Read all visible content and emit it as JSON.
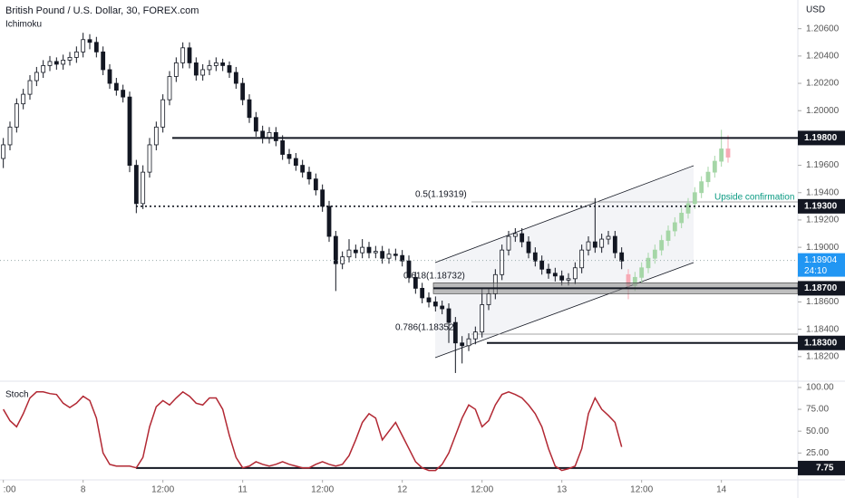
{
  "chart_data": [
    {
      "type": "candlestick",
      "title": "British Pound / U.S. Dollar, 30, FOREX.com",
      "indicator": "Ichimoku",
      "axis_label": "USD",
      "x": [
        0,
        1,
        2,
        3,
        4,
        5,
        6,
        7,
        8,
        9,
        10,
        11,
        12,
        13,
        14,
        15,
        16,
        17,
        18,
        19,
        20,
        21,
        22,
        23,
        24,
        25,
        26,
        27,
        28,
        29,
        30,
        31,
        32,
        33,
        34,
        35,
        36,
        37,
        38,
        39,
        40,
        41,
        42,
        43,
        44,
        45,
        46,
        47,
        48,
        49,
        50,
        51,
        52,
        53,
        54,
        55,
        56,
        57,
        58,
        59,
        60,
        61,
        62,
        63,
        64,
        65,
        66,
        67,
        68,
        69,
        70,
        71,
        72,
        73,
        74,
        75,
        76,
        77,
        78,
        79,
        80,
        81,
        82,
        83,
        84,
        85,
        86,
        87,
        88,
        89,
        90,
        91,
        92,
        93
      ],
      "candles": [
        [
          1.1965,
          1.198,
          1.1958,
          1.1975
        ],
        [
          1.1975,
          1.1992,
          1.1971,
          1.1988
        ],
        [
          1.1988,
          1.2009,
          1.1984,
          1.2005
        ],
        [
          1.2005,
          1.2016,
          1.2001,
          1.2012
        ],
        [
          1.2012,
          1.2026,
          1.2008,
          1.2022
        ],
        [
          1.2022,
          1.2032,
          1.2018,
          1.2028
        ],
        [
          1.2028,
          1.2037,
          1.2024,
          1.2033
        ],
        [
          1.2033,
          1.204,
          1.2029,
          1.2036
        ],
        [
          1.2036,
          1.2039,
          1.203,
          1.2034
        ],
        [
          1.2034,
          1.2041,
          1.203,
          1.2037
        ],
        [
          1.2037,
          1.2043,
          1.2033,
          1.2039
        ],
        [
          1.2039,
          1.2047,
          1.2035,
          1.2043
        ],
        [
          1.2043,
          1.2057,
          1.2039,
          1.2052
        ],
        [
          1.2052,
          1.2056,
          1.2045,
          1.205
        ],
        [
          1.205,
          1.2054,
          1.2039,
          1.2043
        ],
        [
          1.2043,
          1.2047,
          1.2026,
          1.203
        ],
        [
          1.203,
          1.2034,
          1.2016,
          1.202
        ],
        [
          1.202,
          1.2024,
          1.2011,
          1.2015
        ],
        [
          1.2015,
          1.2019,
          1.2006,
          1.201
        ],
        [
          1.201,
          1.2014,
          1.1955,
          1.196
        ],
        [
          1.196,
          1.1964,
          1.1925,
          1.1932
        ],
        [
          1.1932,
          1.196,
          1.1928,
          1.1955
        ],
        [
          1.1955,
          1.198,
          1.1951,
          1.1975
        ],
        [
          1.1975,
          1.1992,
          1.1971,
          1.1988
        ],
        [
          1.1988,
          1.2012,
          1.1984,
          1.2008
        ],
        [
          1.2008,
          1.2029,
          1.2004,
          1.2025
        ],
        [
          1.2025,
          1.2039,
          1.2021,
          1.2035
        ],
        [
          1.2035,
          1.205,
          1.2031,
          1.2046
        ],
        [
          1.2046,
          1.205,
          1.2031,
          1.2035
        ],
        [
          1.2035,
          1.2039,
          1.2022,
          1.2026
        ],
        [
          1.2026,
          1.2034,
          1.2022,
          1.203
        ],
        [
          1.203,
          1.2037,
          1.2026,
          1.2033
        ],
        [
          1.2033,
          1.2039,
          1.2029,
          1.2035
        ],
        [
          1.2035,
          1.2038,
          1.2029,
          1.2033
        ],
        [
          1.2033,
          1.2036,
          1.2024,
          1.2028
        ],
        [
          1.2028,
          1.2032,
          1.2016,
          1.202
        ],
        [
          1.202,
          1.2024,
          1.2004,
          1.2008
        ],
        [
          1.2008,
          1.2012,
          1.1991,
          1.1995
        ],
        [
          1.1995,
          1.1999,
          1.1981,
          1.1985
        ],
        [
          1.1985,
          1.1989,
          1.1976,
          1.198
        ],
        [
          1.198,
          1.1988,
          1.1976,
          1.1984
        ],
        [
          1.1984,
          1.1988,
          1.1974,
          1.1978
        ],
        [
          1.1978,
          1.1982,
          1.1964,
          1.1968
        ],
        [
          1.1968,
          1.1972,
          1.1961,
          1.1965
        ],
        [
          1.1965,
          1.1969,
          1.1956,
          1.196
        ],
        [
          1.196,
          1.1964,
          1.1951,
          1.1955
        ],
        [
          1.1955,
          1.1959,
          1.1946,
          1.195
        ],
        [
          1.195,
          1.1954,
          1.1938,
          1.1942
        ],
        [
          1.1942,
          1.1946,
          1.1926,
          1.193
        ],
        [
          1.193,
          1.1934,
          1.1904,
          1.1908
        ],
        [
          1.1908,
          1.1912,
          1.1868,
          1.1888
        ],
        [
          1.1888,
          1.1897,
          1.1884,
          1.1893
        ],
        [
          1.1893,
          1.1906,
          1.1889,
          1.1898
        ],
        [
          1.1898,
          1.1902,
          1.1892,
          1.1896
        ],
        [
          1.1896,
          1.1906,
          1.1892,
          1.19
        ],
        [
          1.19,
          1.1904,
          1.1892,
          1.1896
        ],
        [
          1.1896,
          1.1901,
          1.1892,
          1.1897
        ],
        [
          1.1897,
          1.1901,
          1.1888,
          1.1892
        ],
        [
          1.1892,
          1.1899,
          1.1888,
          1.1895
        ],
        [
          1.1895,
          1.1899,
          1.189,
          1.1894
        ],
        [
          1.1894,
          1.1898,
          1.1886,
          1.189
        ],
        [
          1.189,
          1.1894,
          1.1874,
          1.1878
        ],
        [
          1.1878,
          1.1882,
          1.1866,
          1.187
        ],
        [
          1.187,
          1.1874,
          1.1859,
          1.1863
        ],
        [
          1.1863,
          1.1867,
          1.1856,
          1.186
        ],
        [
          1.186,
          1.1864,
          1.1853,
          1.1857
        ],
        [
          1.1857,
          1.1861,
          1.1851,
          1.1855
        ],
        [
          1.1855,
          1.1859,
          1.183,
          1.1845
        ],
        [
          1.1845,
          1.1849,
          1.1808,
          1.183
        ],
        [
          1.183,
          1.1835,
          1.1815,
          1.1828
        ],
        [
          1.1828,
          1.1837,
          1.1824,
          1.1833
        ],
        [
          1.1833,
          1.1842,
          1.1829,
          1.1838
        ],
        [
          1.1838,
          1.187,
          1.1834,
          1.1858
        ],
        [
          1.1858,
          1.187,
          1.1854,
          1.1866
        ],
        [
          1.1866,
          1.1884,
          1.1862,
          1.188
        ],
        [
          1.188,
          1.1902,
          1.1876,
          1.1898
        ],
        [
          1.1898,
          1.1912,
          1.1894,
          1.1908
        ],
        [
          1.1908,
          1.1914,
          1.1904,
          1.191
        ],
        [
          1.191,
          1.1914,
          1.19,
          1.1904
        ],
        [
          1.1904,
          1.1908,
          1.1892,
          1.1896
        ],
        [
          1.1896,
          1.19,
          1.1886,
          1.189
        ],
        [
          1.189,
          1.1894,
          1.188,
          1.1884
        ],
        [
          1.1884,
          1.1888,
          1.1877,
          1.1881
        ],
        [
          1.1881,
          1.1885,
          1.1875,
          1.1879
        ],
        [
          1.1879,
          1.1883,
          1.1872,
          1.1876
        ],
        [
          1.1876,
          1.1881,
          1.1872,
          1.1877
        ],
        [
          1.1877,
          1.1889,
          1.1873,
          1.1885
        ],
        [
          1.1885,
          1.1902,
          1.1881,
          1.1898
        ],
        [
          1.1898,
          1.1908,
          1.1894,
          1.1904
        ],
        [
          1.1904,
          1.1936,
          1.1896,
          1.19
        ],
        [
          1.19,
          1.191,
          1.1896,
          1.1906
        ],
        [
          1.1906,
          1.1912,
          1.1902,
          1.1908
        ],
        [
          1.1908,
          1.1912,
          1.1892,
          1.1896
        ],
        [
          1.1896,
          1.19,
          1.1884,
          1.189
        ]
      ],
      "up_color": "#ffffff",
      "down_color": "#131722",
      "projection": {
        "x": [
          94,
          95,
          96,
          97,
          98,
          99,
          100,
          101,
          102,
          103,
          104,
          105,
          106,
          107,
          108,
          109
        ],
        "candles": [
          [
            1.188,
            1.1884,
            1.1862,
            1.1872
          ],
          [
            1.1872,
            1.1882,
            1.1868,
            1.1878
          ],
          [
            1.1878,
            1.1889,
            1.1874,
            1.1885
          ],
          [
            1.1885,
            1.1896,
            1.1881,
            1.1892
          ],
          [
            1.1892,
            1.1902,
            1.1888,
            1.1898
          ],
          [
            1.1898,
            1.1909,
            1.1894,
            1.1905
          ],
          [
            1.1905,
            1.1916,
            1.1901,
            1.1912
          ],
          [
            1.1912,
            1.1922,
            1.1908,
            1.1918
          ],
          [
            1.1918,
            1.1929,
            1.1914,
            1.1925
          ],
          [
            1.1925,
            1.1936,
            1.1921,
            1.1932
          ],
          [
            1.1932,
            1.1944,
            1.1928,
            1.194
          ],
          [
            1.194,
            1.1952,
            1.1936,
            1.1948
          ],
          [
            1.1948,
            1.1959,
            1.1944,
            1.1955
          ],
          [
            1.1955,
            1.1967,
            1.1951,
            1.1963
          ],
          [
            1.1963,
            1.1986,
            1.1959,
            1.1972
          ],
          [
            1.1972,
            1.1982,
            1.1962,
            1.1966
          ]
        ],
        "up_color": "#a5d6a7",
        "down_color": "#f7a9b5"
      },
      "xlim": [
        -0.5,
        119.5
      ],
      "ylim": [
        1.1802,
        1.2081
      ],
      "yticks": [
        {
          "value": 1.206,
          "label": "1.20600"
        },
        {
          "value": 1.204,
          "label": "1.20400"
        },
        {
          "value": 1.202,
          "label": "1.20200"
        },
        {
          "value": 1.2,
          "label": "1.20000"
        },
        {
          "value": 1.196,
          "label": "1.19600"
        },
        {
          "value": 1.194,
          "label": "1.19400"
        },
        {
          "value": 1.192,
          "label": "1.19200"
        },
        {
          "value": 1.19,
          "label": "1.19000"
        },
        {
          "value": 1.186,
          "label": "1.18600"
        },
        {
          "value": 1.184,
          "label": "1.18400"
        },
        {
          "value": 1.182,
          "label": "1.18200"
        }
      ],
      "levels": [
        {
          "value": 1.198,
          "label": "1.19800"
        },
        {
          "value": 1.193,
          "label": "1.19300"
        },
        {
          "value": 1.187,
          "label": "1.18700"
        },
        {
          "value": 1.183,
          "label": "1.18300"
        }
      ],
      "current_price": {
        "value": 1.18904,
        "label": "1.18904",
        "countdown": "24:10",
        "color": "#2196f3"
      },
      "annotations": [
        "0.5(1.19319)",
        "0.618(1.18732)",
        "0.786(1.18352)",
        "Upside confirmation"
      ]
    },
    {
      "type": "line",
      "title": "Stoch",
      "color": "#b22833",
      "x": [
        0,
        1,
        2,
        3,
        4,
        5,
        6,
        7,
        8,
        9,
        10,
        11,
        12,
        13,
        14,
        15,
        16,
        17,
        18,
        19,
        20,
        21,
        22,
        23,
        24,
        25,
        26,
        27,
        28,
        29,
        30,
        31,
        32,
        33,
        34,
        35,
        36,
        37,
        38,
        39,
        40,
        41,
        42,
        43,
        44,
        45,
        46,
        47,
        48,
        49,
        50,
        51,
        52,
        53,
        54,
        55,
        56,
        57,
        58,
        59,
        60,
        61,
        62,
        63,
        64,
        65,
        66,
        67,
        68,
        69,
        70,
        71,
        72,
        73,
        74,
        75,
        76,
        77,
        78,
        79,
        80,
        81,
        82,
        83,
        84,
        85,
        86,
        87,
        88,
        89,
        90,
        91,
        92,
        93
      ],
      "values": [
        75,
        62,
        55,
        70,
        88,
        95,
        95,
        93,
        92,
        82,
        77,
        82,
        90,
        85,
        65,
        25,
        12,
        10,
        10,
        10,
        8,
        20,
        55,
        78,
        85,
        80,
        88,
        95,
        90,
        82,
        80,
        88,
        88,
        75,
        45,
        20,
        8,
        10,
        15,
        12,
        10,
        12,
        15,
        12,
        10,
        8,
        8,
        12,
        15,
        12,
        10,
        12,
        22,
        40,
        60,
        70,
        65,
        40,
        50,
        60,
        45,
        30,
        15,
        8,
        5,
        5,
        12,
        25,
        45,
        65,
        80,
        75,
        55,
        62,
        80,
        92,
        95,
        92,
        88,
        80,
        70,
        55,
        30,
        10,
        5,
        7,
        10,
        30,
        70,
        88,
        75,
        68,
        60,
        32
      ],
      "xlim": [
        -0.5,
        119.5
      ],
      "ylim": [
        -5.8,
        107.2
      ],
      "yticks": [
        {
          "value": 100,
          "label": "100.00"
        },
        {
          "value": 75,
          "label": "75.00"
        },
        {
          "value": 50,
          "label": "50.00"
        },
        {
          "value": 25,
          "label": "25.00"
        }
      ],
      "levels": [
        7.75
      ],
      "xticks": [
        {
          "value": 0,
          "label": ":00"
        },
        {
          "value": 12,
          "label": "8"
        },
        {
          "value": 24,
          "label": "12:00"
        },
        {
          "value": 36,
          "label": "11"
        },
        {
          "value": 48,
          "label": "12:00"
        },
        {
          "value": 60,
          "label": "12"
        },
        {
          "value": 72,
          "label": "12:00"
        },
        {
          "value": 84,
          "label": "13"
        },
        {
          "value": 96,
          "label": "12:00"
        },
        {
          "value": 108,
          "label": "14"
        }
      ]
    }
  ]
}
